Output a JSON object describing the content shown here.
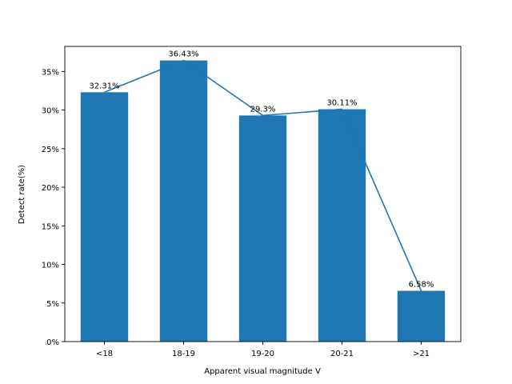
{
  "chart_data": {
    "type": "bar",
    "categories": [
      "<18",
      "18-19",
      "19-20",
      "20-21",
      ">21"
    ],
    "values": [
      32.31,
      36.43,
      29.3,
      30.11,
      6.58
    ],
    "value_labels": [
      "32.31%",
      "36.43%",
      "29.3%",
      "30.11%",
      "6.58%"
    ],
    "overlay_line": true,
    "title": "",
    "xlabel": "Apparent visual magnitude V",
    "ylabel": "Detect rate(%)",
    "ylim": [
      0,
      38.25
    ],
    "yticks": [
      0,
      5,
      10,
      15,
      20,
      25,
      30,
      35
    ],
    "ytick_labels": [
      "0%",
      "5%",
      "10%",
      "15%",
      "20%",
      "25%",
      "30%",
      "35%"
    ],
    "grid": false,
    "legend": "none",
    "colors": {
      "bar": "#1f77b4",
      "line": "#1f77b4"
    }
  }
}
